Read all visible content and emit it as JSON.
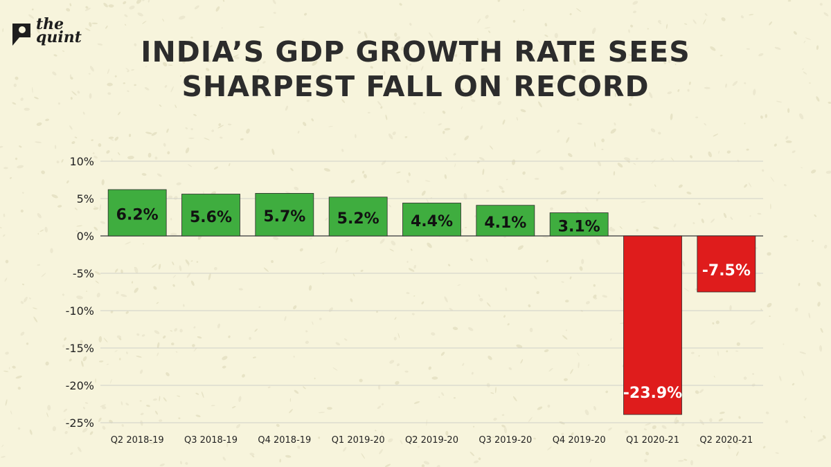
{
  "brand": {
    "logo_text": "the quint"
  },
  "colors": {
    "background": "#f7f4dc",
    "positive": "#3fad3f",
    "negative": "#df1c1c",
    "grid": "#cfcfc7",
    "title": "#2c2c2c"
  },
  "chart_data": {
    "type": "bar",
    "title_lines": [
      "INDIA’S GDP GROWTH RATE SEES",
      "SHARPEST FALL ON RECORD"
    ],
    "xlabel": "",
    "ylabel": "",
    "ylim": [
      -25,
      10
    ],
    "yticks": [
      10,
      5,
      0,
      -5,
      -10,
      -15,
      -20,
      -25
    ],
    "ytick_labels": [
      "10%",
      "5%",
      "0%",
      "-5%",
      "-10%",
      "-15%",
      "-20%",
      "-25%"
    ],
    "grid": true,
    "categories": [
      "Q2 2018-19",
      "Q3 2018-19",
      "Q4 2018-19",
      "Q1 2019-20",
      "Q2 2019-20",
      "Q3 2019-20",
      "Q4 2019-20",
      "Q1 2020-21",
      "Q2 2020-21"
    ],
    "values": [
      6.2,
      5.6,
      5.7,
      5.2,
      4.4,
      4.1,
      3.1,
      -23.9,
      -7.5
    ],
    "data_labels": [
      "6.2%",
      "5.6%",
      "5.7%",
      "5.2%",
      "4.4%",
      "4.1%",
      "3.1%",
      "-23.9%",
      "-7.5%"
    ]
  }
}
